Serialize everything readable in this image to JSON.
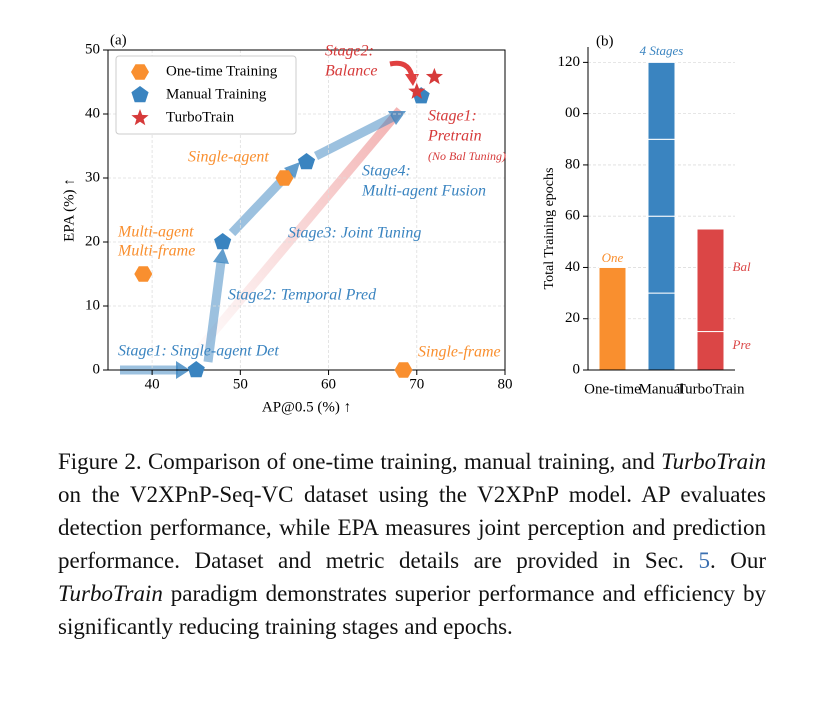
{
  "chart_data": [
    {
      "type": "scatter",
      "panel_label": "(a)",
      "xlabel": "AP@0.5 (%) ↑",
      "ylabel": "EPA (%) ↑",
      "xlim": [
        35,
        80
      ],
      "xticks": [
        40,
        50,
        60,
        70,
        80
      ],
      "ylim": [
        0,
        50
      ],
      "yticks": [
        0,
        10,
        20,
        30,
        40,
        50
      ],
      "grid": true,
      "legend": "upper left",
      "series": [
        {
          "name": "One-time Training",
          "color": "#f98f2f",
          "marker": "hexagon",
          "x": [
            39,
            55,
            68.5
          ],
          "values": [
            15,
            30,
            0
          ]
        },
        {
          "name": "Manual Training",
          "color": "#3a84c0",
          "marker": "pentagon",
          "x": [
            45,
            48,
            57.5,
            70.5
          ],
          "values": [
            0,
            20,
            32.5,
            42.8
          ]
        },
        {
          "name": "TurboTrain",
          "color": "#d63a3a",
          "marker": "star",
          "x": [
            70,
            72
          ],
          "values": [
            43.5,
            45.8
          ]
        }
      ],
      "annotations": [
        "Stage2:",
        "Balance",
        "Stage1:",
        "Pretrain",
        "(No Bal Tuning)",
        "Single-agent",
        "Stage4:",
        "Multi-agent Fusion",
        "Multi-agent",
        "Multi-frame",
        "Stage3: Joint Tuning",
        "Stage2: Temporal Pred",
        "Stage1: Single-agent Det",
        "Single-frame"
      ]
    },
    {
      "type": "bar",
      "panel_label": "(b)",
      "ylabel": "Total Training epochs",
      "categories": [
        "One-time",
        "Manual",
        "TurboTrain"
      ],
      "colors": [
        "#f98f2f",
        "#3a84c0",
        "#db4646"
      ],
      "segments": [
        [
          40
        ],
        [
          30,
          30,
          30,
          30
        ],
        [
          15,
          40
        ]
      ],
      "ylim": [
        0,
        126
      ],
      "yticks": [
        0,
        20,
        40,
        60,
        80,
        {
          "value": 100,
          "label": "00"
        },
        120
      ],
      "grid": true,
      "annotations": [
        "One",
        "4 Stages",
        "Bal",
        "Pre"
      ]
    }
  ],
  "caption": [
    "Figure 2. Comparison of one-time training, manual training, and ",
    "TurboTrain",
    " on the V2XPnP-Seq-VC dataset using the V2XPnP model. AP evaluates detection performance, while EPA measures joint perception and prediction performance. Dataset and metric details are provided in Sec. ",
    "5",
    ". Our ",
    "TurboTrain",
    " paradigm demonstrates superior performance and efficiency by significantly reducing training stages and epochs."
  ]
}
